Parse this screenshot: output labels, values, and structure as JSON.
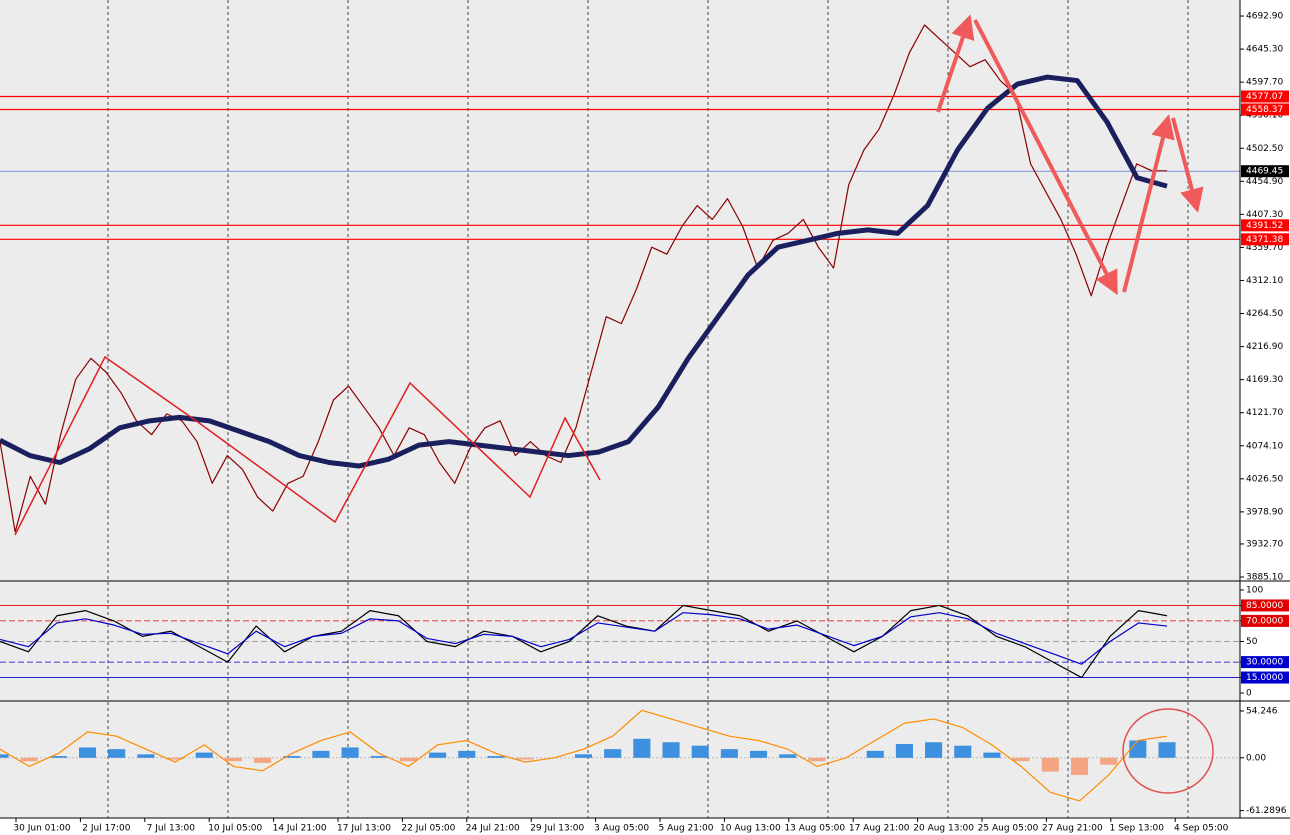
{
  "chart_data": [
    {
      "type": "line",
      "ylim": [
        3880.8,
        4716
      ],
      "yticks": [
        {
          "value": 4692.9,
          "label": "4692.90"
        },
        {
          "value": 4645.3,
          "label": "4645.30"
        },
        {
          "value": 4597.7,
          "label": "4597.70"
        },
        {
          "value": 4550.1,
          "label": "4550.10"
        },
        {
          "value": 4502.5,
          "label": "4502.50"
        },
        {
          "value": 4454.9,
          "label": "4454.90"
        },
        {
          "value": 4407.3,
          "label": "4407.30"
        },
        {
          "value": 4359.7,
          "label": "4359.70"
        },
        {
          "value": 4312.1,
          "label": "4312.10"
        },
        {
          "value": 4264.5,
          "label": "4264.50"
        },
        {
          "value": 4216.9,
          "label": "4216.90"
        },
        {
          "value": 4169.3,
          "label": "4169.30"
        },
        {
          "value": 4121.7,
          "label": "4121.70"
        },
        {
          "value": 4074.1,
          "label": "4074.10"
        },
        {
          "value": 4026.5,
          "label": "4026.50"
        },
        {
          "value": 3978.9,
          "label": "3978.90"
        },
        {
          "value": 3932.7,
          "label": "3932.70"
        },
        {
          "value": 3885.1,
          "label": "3885.10"
        }
      ],
      "levels": [
        {
          "value": 4577.07,
          "color": "#ff0000"
        },
        {
          "value": 4558.37,
          "color": "#ff0000"
        },
        {
          "value": 4469.45,
          "color": "#000000"
        },
        {
          "value": 4391.52,
          "color": "#ff0000"
        },
        {
          "value": 4371.38,
          "color": "#ff0000"
        }
      ],
      "series": [
        {
          "color": "#8b0000",
          "values": [
            4080,
            3950,
            4030,
            3990,
            4090,
            4170,
            4200,
            4180,
            4150,
            4110,
            4090,
            4120,
            4110,
            4080,
            4020,
            4060,
            4040,
            4000,
            3980,
            4020,
            4030,
            4080,
            4140,
            4160,
            4130,
            4100,
            4060,
            4100,
            4090,
            4050,
            4020,
            4070,
            4100,
            4110,
            4060,
            4080,
            4060,
            4050,
            4100,
            4180,
            4260,
            4250,
            4300,
            4360,
            4350,
            4390,
            4420,
            4400,
            4430,
            4390,
            4330,
            4370,
            4380,
            4400,
            4360,
            4330,
            4450,
            4500,
            4530,
            4580,
            4640,
            4680,
            4660,
            4640,
            4620,
            4630,
            4600,
            4580,
            4480,
            4440,
            4400,
            4350,
            4290,
            4360,
            4420,
            4480,
            4470,
            4470
          ]
        },
        {
          "color": "#1a1f5e",
          "values": [
            4082,
            4060,
            4050,
            4070,
            4100,
            4110,
            4115,
            4110,
            4095,
            4080,
            4060,
            4050,
            4045,
            4055,
            4075,
            4080,
            4075,
            4070,
            4065,
            4060,
            4065,
            4080,
            4130,
            4200,
            4260,
            4320,
            4360,
            4370,
            4380,
            4385,
            4380,
            4420,
            4500,
            4560,
            4595,
            4605,
            4600,
            4540,
            4460,
            4448
          ]
        }
      ]
    },
    {
      "type": "line",
      "ylim": [
        -6.8,
        106.8
      ],
      "yticks": [
        100,
        {
          "value": 85,
          "label": "85.0000"
        },
        {
          "value": 70,
          "label": "70.0000"
        },
        50,
        {
          "value": 30,
          "label": "30.0000"
        },
        {
          "value": 15,
          "label": "15.0000"
        },
        0
      ],
      "series": [
        {
          "color": "#000000",
          "values": [
            50,
            40,
            75,
            80,
            70,
            55,
            60,
            45,
            30,
            65,
            40,
            55,
            60,
            80,
            75,
            50,
            45,
            60,
            55,
            40,
            50,
            75,
            65,
            60,
            85,
            80,
            75,
            60,
            70,
            55,
            40,
            55,
            80,
            85,
            75,
            55,
            45,
            30,
            15,
            55,
            80,
            75
          ]
        },
        {
          "color": "#0000cc",
          "values": [
            52,
            45,
            68,
            72,
            66,
            57,
            58,
            48,
            38,
            60,
            45,
            55,
            58,
            72,
            70,
            53,
            48,
            57,
            55,
            45,
            52,
            68,
            64,
            60,
            78,
            76,
            72,
            62,
            66,
            56,
            46,
            55,
            74,
            78,
            72,
            58,
            48,
            38,
            28,
            50,
            68,
            65
          ]
        }
      ]
    },
    {
      "type": "bar",
      "ylim": [
        -69.8,
        63.5
      ],
      "yticks": [
        54.246,
        {
          "value": 0,
          "label": "0.00"
        },
        -61.2896
      ],
      "series": [
        {
          "type": "bar",
          "color": "#3d8fe0",
          "neg_color": "#f4a582",
          "values": [
            4,
            -4,
            2,
            12,
            10,
            4,
            -2,
            6,
            -4,
            -6,
            2,
            8,
            12,
            2,
            -4,
            6,
            8,
            2,
            -2,
            0,
            4,
            10,
            22,
            18,
            14,
            10,
            8,
            4,
            -4,
            0,
            8,
            16,
            18,
            14,
            6,
            -4,
            -16,
            -20,
            -8,
            20,
            18
          ]
        },
        {
          "type": "line",
          "color": "#ff8c00",
          "values": [
            10,
            -10,
            5,
            30,
            25,
            10,
            -5,
            15,
            -10,
            -15,
            5,
            20,
            30,
            5,
            -10,
            15,
            20,
            5,
            -5,
            0,
            10,
            25,
            55,
            45,
            35,
            25,
            20,
            10,
            -10,
            0,
            20,
            40,
            45,
            35,
            15,
            -10,
            -40,
            -50,
            -20,
            20,
            25
          ]
        }
      ]
    }
  ],
  "time_axis": {
    "labels": [
      "30 Jun 01:00",
      "2 Jul 17:00",
      "7 Jul 13:00",
      "10 Jul 05:00",
      "14 Jul 21:00",
      "17 Jul 13:00",
      "22 Jul 05:00",
      "24 Jul 21:00",
      "29 Jul 13:00",
      "3 Aug 05:00",
      "5 Aug 21:00",
      "10 Aug 13:00",
      "13 Aug 05:00",
      "17 Aug 21:00",
      "20 Aug 13:00",
      "25 Aug 05:00",
      "27 Aug 21:00",
      "1 Sep 13:00",
      "4 Sep 05:00"
    ]
  }
}
